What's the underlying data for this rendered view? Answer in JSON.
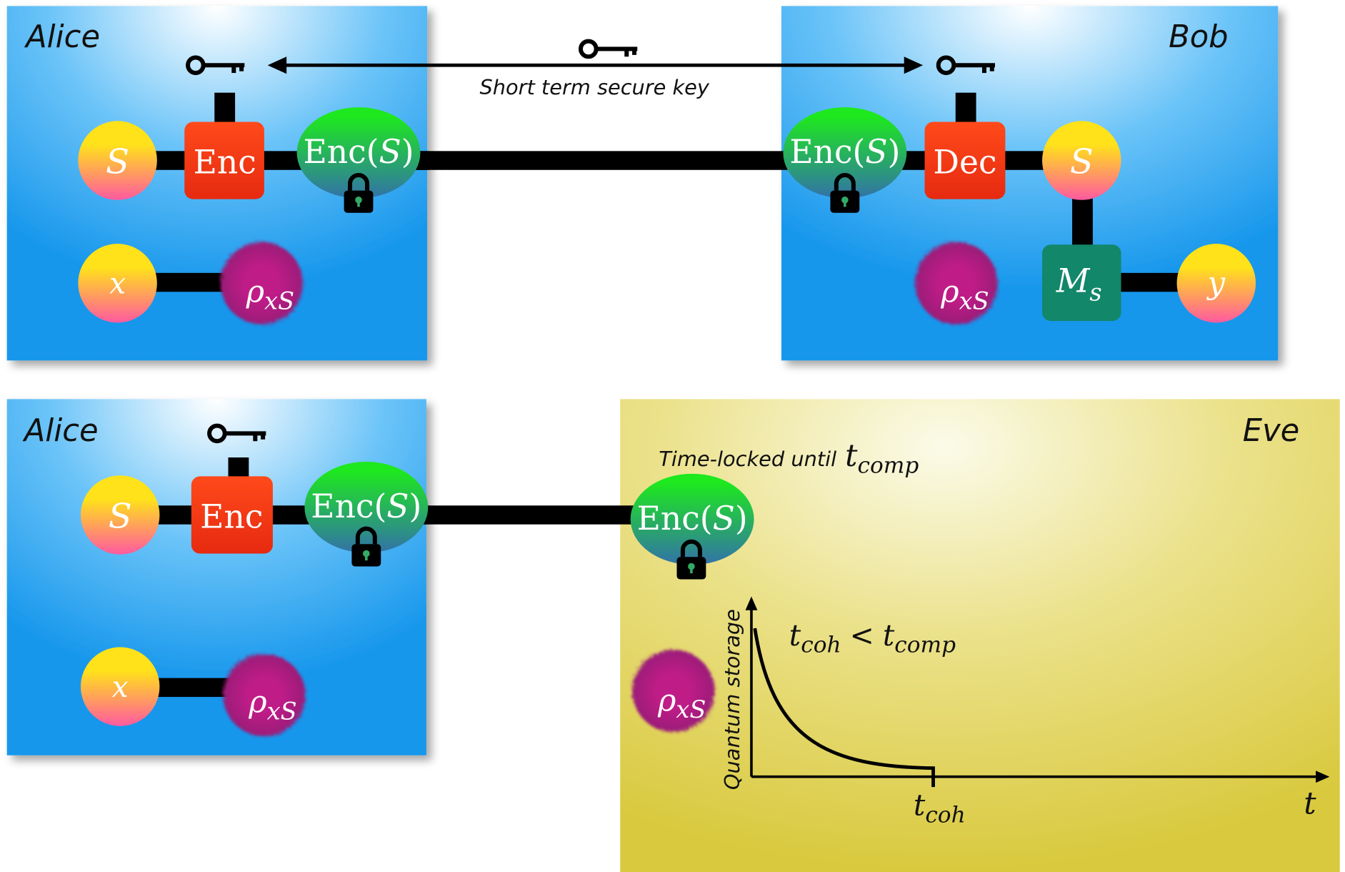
{
  "top": {
    "alice": {
      "label": "Alice",
      "secret": "S",
      "encoder": "Enc",
      "ciphertext": {
        "name": "Enc(",
        "arg": "S",
        "close": ")"
      },
      "input": "x",
      "state": {
        "symbol": "ρ",
        "sub": "xS"
      }
    },
    "key_label": "Short term secure key",
    "bob": {
      "label": "Bob",
      "ciphertext": {
        "name": "Enc(",
        "arg": "S",
        "close": ")"
      },
      "decoder": "Dec",
      "secret": "S",
      "state": {
        "symbol": "ρ",
        "sub": "xS"
      },
      "measurement": {
        "symbol": "M",
        "sub": "s"
      },
      "output": "y"
    }
  },
  "bottom": {
    "alice": {
      "label": "Alice",
      "secret": "S",
      "encoder": "Enc",
      "ciphertext": {
        "name": "Enc(",
        "arg": "S",
        "close": ")"
      },
      "input": "x",
      "state": {
        "symbol": "ρ",
        "sub": "xS"
      }
    },
    "eve": {
      "label": "Eve",
      "timelock": {
        "text": "Time-locked until",
        "symbol": "t",
        "sub": "comp"
      },
      "ciphertext": {
        "name": "Enc(",
        "arg": "S",
        "close": ")"
      },
      "state": {
        "symbol": "ρ",
        "sub": "xS"
      },
      "storage_axis_label": "Quantum storage",
      "condition": {
        "lhs": "t",
        "lhs_sub": "coh",
        "op": "<",
        "rhs": "t",
        "rhs_sub": "comp"
      },
      "tick": {
        "symbol": "t",
        "sub": "coh"
      },
      "time_axis": "t"
    }
  }
}
